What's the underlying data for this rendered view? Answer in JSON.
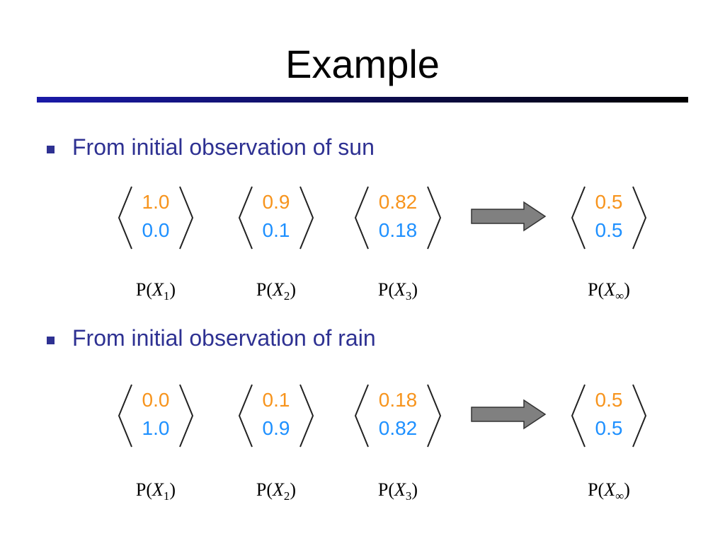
{
  "title": "Example",
  "sections": [
    {
      "bullet": "From initial observation of sun",
      "vectors": [
        {
          "top": "1.0",
          "bottom": "0.0",
          "label": {
            "prefix": "P(",
            "var": "X",
            "sub": "1",
            "suffix": ")"
          }
        },
        {
          "top": "0.9",
          "bottom": "0.1",
          "label": {
            "prefix": "P(",
            "var": "X",
            "sub": "2",
            "suffix": ")"
          }
        },
        {
          "top": "0.82",
          "bottom": "0.18",
          "label": {
            "prefix": "P(",
            "var": "X",
            "sub": "3",
            "suffix": ")"
          }
        },
        {
          "top": "0.5",
          "bottom": "0.5",
          "label": {
            "prefix": "P(",
            "var": "X",
            "sub": "∞",
            "suffix": ")"
          }
        }
      ]
    },
    {
      "bullet": "From initial observation of rain",
      "vectors": [
        {
          "top": "0.0",
          "bottom": "1.0",
          "label": {
            "prefix": "P(",
            "var": "X",
            "sub": "1",
            "suffix": ")"
          }
        },
        {
          "top": "0.1",
          "bottom": "0.9",
          "label": {
            "prefix": "P(",
            "var": "X",
            "sub": "2",
            "suffix": ")"
          }
        },
        {
          "top": "0.18",
          "bottom": "0.82",
          "label": {
            "prefix": "P(",
            "var": "X",
            "sub": "3",
            "suffix": ")"
          }
        },
        {
          "top": "0.5",
          "bottom": "0.5",
          "label": {
            "prefix": "P(",
            "var": "X",
            "sub": "∞",
            "suffix": ")"
          }
        }
      ]
    }
  ]
}
